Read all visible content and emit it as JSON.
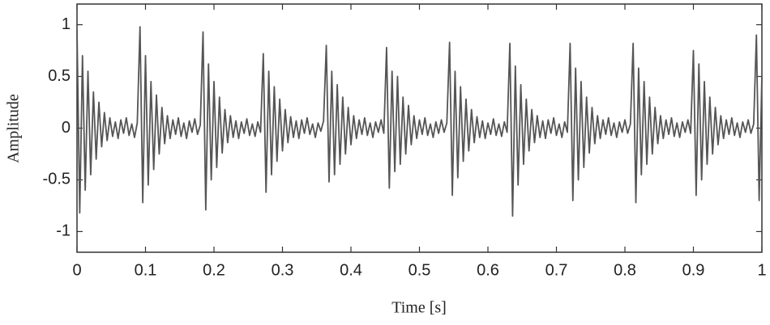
{
  "chart_data": {
    "type": "line",
    "xlabel": "Time [s]",
    "ylabel": "Amplitude",
    "color": "#555555",
    "xlim": [
      0,
      1
    ],
    "ylim": [
      -1.2,
      1.2
    ],
    "xticks": [
      0,
      0.1,
      0.2,
      0.3,
      0.4,
      0.5,
      0.6,
      0.7,
      0.8,
      0.9,
      1
    ],
    "yticks": [
      -1,
      -0.5,
      0,
      0.5,
      1
    ],
    "x": [
      0,
      0.004,
      0.008,
      0.012,
      0.016,
      0.02,
      0.024,
      0.028,
      0.032,
      0.036,
      0.04,
      0.044,
      0.048,
      0.052,
      0.056,
      0.06,
      0.064,
      0.068,
      0.072,
      0.076,
      0.08,
      0.084,
      0.088,
      0.092,
      0.096,
      0.1,
      0.104,
      0.108,
      0.112,
      0.116,
      0.12,
      0.124,
      0.128,
      0.132,
      0.136,
      0.14,
      0.144,
      0.148,
      0.152,
      0.156,
      0.16,
      0.164,
      0.168,
      0.172,
      0.176,
      0.18,
      0.184,
      0.188,
      0.192,
      0.196,
      0.2,
      0.204,
      0.208,
      0.212,
      0.216,
      0.22,
      0.224,
      0.228,
      0.232,
      0.236,
      0.24,
      0.244,
      0.248,
      0.252,
      0.256,
      0.26,
      0.264,
      0.268,
      0.272,
      0.276,
      0.28,
      0.284,
      0.288,
      0.292,
      0.296,
      0.3,
      0.304,
      0.308,
      0.312,
      0.316,
      0.32,
      0.324,
      0.328,
      0.332,
      0.336,
      0.34,
      0.344,
      0.348,
      0.352,
      0.356,
      0.36,
      0.364,
      0.368,
      0.372,
      0.376,
      0.38,
      0.384,
      0.388,
      0.392,
      0.396,
      0.4,
      0.404,
      0.408,
      0.412,
      0.416,
      0.42,
      0.424,
      0.428,
      0.432,
      0.436,
      0.44,
      0.444,
      0.448,
      0.452,
      0.456,
      0.46,
      0.464,
      0.468,
      0.472,
      0.476,
      0.48,
      0.484,
      0.488,
      0.492,
      0.496,
      0.5,
      0.504,
      0.508,
      0.512,
      0.516,
      0.52,
      0.524,
      0.528,
      0.532,
      0.536,
      0.54,
      0.544,
      0.548,
      0.552,
      0.556,
      0.56,
      0.564,
      0.568,
      0.572,
      0.576,
      0.58,
      0.584,
      0.588,
      0.592,
      0.596,
      0.6,
      0.604,
      0.608,
      0.612,
      0.616,
      0.62,
      0.624,
      0.628,
      0.632,
      0.636,
      0.64,
      0.644,
      0.648,
      0.652,
      0.656,
      0.66,
      0.664,
      0.668,
      0.672,
      0.676,
      0.68,
      0.684,
      0.688,
      0.692,
      0.696,
      0.7,
      0.704,
      0.708,
      0.712,
      0.716,
      0.72,
      0.724,
      0.728,
      0.732,
      0.736,
      0.74,
      0.744,
      0.748,
      0.752,
      0.756,
      0.76,
      0.764,
      0.768,
      0.772,
      0.776,
      0.78,
      0.784,
      0.788,
      0.792,
      0.796,
      0.8,
      0.804,
      0.808,
      0.812,
      0.816,
      0.82,
      0.824,
      0.828,
      0.832,
      0.836,
      0.84,
      0.844,
      0.848,
      0.852,
      0.856,
      0.86,
      0.864,
      0.868,
      0.872,
      0.876,
      0.88,
      0.884,
      0.888,
      0.892,
      0.896,
      0.9,
      0.904,
      0.908,
      0.912,
      0.916,
      0.92,
      0.924,
      0.928,
      0.932,
      0.936,
      0.94,
      0.944,
      0.948,
      0.952,
      0.956,
      0.96,
      0.964,
      0.968,
      0.972,
      0.976,
      0.98,
      0.984,
      0.988,
      0.992,
      0.996,
      1
    ],
    "values": [
      0.95,
      -0.82,
      0.7,
      -0.6,
      0.55,
      -0.45,
      0.35,
      -0.3,
      0.25,
      -0.18,
      0.15,
      -0.12,
      0.1,
      -0.08,
      0.06,
      -0.1,
      0.08,
      -0.05,
      0.1,
      -0.07,
      0.04,
      -0.09,
      0.05,
      0.98,
      -0.72,
      0.7,
      -0.55,
      0.45,
      -0.4,
      0.32,
      -0.25,
      0.2,
      -0.15,
      0.12,
      -0.1,
      0.08,
      -0.06,
      0.1,
      -0.08,
      0.05,
      -0.1,
      0.07,
      -0.04,
      0.09,
      -0.06,
      0.03,
      0.93,
      -0.79,
      0.62,
      -0.5,
      0.45,
      -0.38,
      0.3,
      -0.24,
      0.18,
      -0.14,
      0.12,
      -0.09,
      0.07,
      -0.1,
      0.06,
      -0.05,
      0.09,
      -0.07,
      0.04,
      -0.08,
      0.06,
      -0.04,
      0.72,
      -0.62,
      0.55,
      -0.45,
      0.4,
      -0.32,
      0.28,
      -0.22,
      0.18,
      -0.14,
      0.11,
      -0.09,
      0.07,
      -0.1,
      0.08,
      -0.05,
      0.1,
      -0.06,
      0.04,
      -0.09,
      0.05,
      -0.03,
      0.07,
      0.8,
      -0.52,
      0.55,
      -0.45,
      0.42,
      -0.35,
      0.3,
      -0.25,
      0.2,
      -0.16,
      0.12,
      -0.1,
      0.08,
      -0.06,
      0.1,
      -0.07,
      0.05,
      -0.09,
      0.06,
      -0.04,
      0.08,
      -0.05,
      0.78,
      -0.58,
      0.55,
      -0.42,
      0.5,
      -0.35,
      0.3,
      -0.25,
      0.22,
      -0.16,
      0.12,
      -0.1,
      0.08,
      -0.06,
      0.1,
      -0.07,
      0.04,
      -0.09,
      0.06,
      -0.05,
      0.08,
      -0.04,
      0.05,
      0.83,
      -0.65,
      0.55,
      -0.48,
      0.4,
      -0.32,
      0.28,
      -0.22,
      0.18,
      -0.14,
      0.11,
      -0.09,
      0.07,
      -0.1,
      0.05,
      -0.06,
      0.09,
      -0.07,
      0.04,
      -0.08,
      0.06,
      -0.04,
      0.82,
      -0.85,
      0.6,
      -0.55,
      0.42,
      -0.35,
      0.28,
      -0.22,
      0.18,
      -0.14,
      0.12,
      -0.09,
      0.07,
      -0.1,
      0.08,
      -0.05,
      0.1,
      -0.07,
      0.04,
      -0.09,
      0.06,
      -0.04,
      0.82,
      -0.7,
      0.58,
      -0.5,
      0.45,
      -0.38,
      0.3,
      -0.24,
      0.2,
      -0.15,
      0.12,
      -0.1,
      0.08,
      -0.06,
      0.1,
      -0.07,
      0.05,
      -0.09,
      0.06,
      -0.04,
      0.08,
      -0.05,
      0.04,
      0.82,
      -0.72,
      0.58,
      -0.45,
      0.45,
      -0.35,
      0.3,
      -0.25,
      0.2,
      -0.15,
      0.12,
      -0.1,
      0.08,
      -0.06,
      0.1,
      -0.08,
      0.05,
      -0.09,
      0.06,
      -0.04,
      0.08,
      -0.05,
      0.75,
      -0.65,
      0.62,
      -0.5,
      0.45,
      -0.35,
      0.3,
      -0.25,
      0.2,
      -0.16,
      0.12,
      -0.1,
      0.08,
      -0.06,
      0.1,
      -0.07,
      0.05,
      -0.09,
      0.06,
      -0.04,
      0.08,
      -0.05,
      0.04,
      0.9,
      -0.7,
      0.5
    ]
  }
}
